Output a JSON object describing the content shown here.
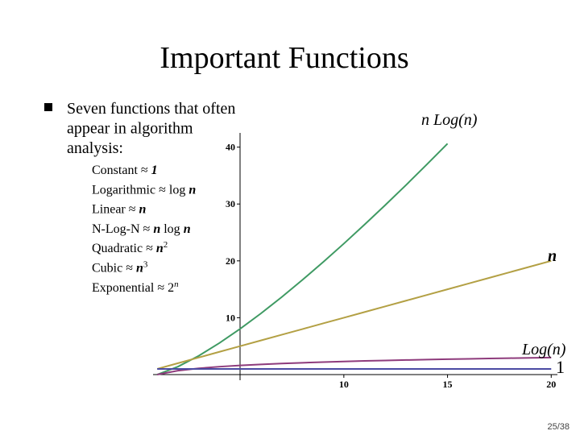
{
  "slide": {
    "title": "Important Functions",
    "bullet": [
      "Seven functions that often",
      "appear in algorithm",
      "analysis:"
    ],
    "approx": "≈",
    "items": [
      {
        "name": "Constant",
        "parts": [
          {
            "text": "1",
            "style": "var"
          }
        ]
      },
      {
        "name": "Logarithmic",
        "parts": [
          {
            "text": "log ",
            "style": "plain"
          },
          {
            "text": "n",
            "style": "var"
          }
        ]
      },
      {
        "name": "Linear",
        "parts": [
          {
            "text": "n",
            "style": "var"
          }
        ]
      },
      {
        "name": "N-Log-N",
        "parts": [
          {
            "text": "n",
            "style": "var"
          },
          {
            "text": " log ",
            "style": "plain"
          },
          {
            "text": "n",
            "style": "var"
          }
        ]
      },
      {
        "name": "Quadratic",
        "parts": [
          {
            "text": "n",
            "style": "var"
          },
          {
            "text": "2",
            "style": "sup"
          }
        ]
      },
      {
        "name": "Cubic",
        "parts": [
          {
            "text": "n",
            "style": "var"
          },
          {
            "text": "3",
            "style": "sup"
          }
        ]
      },
      {
        "name": "Exponential",
        "parts": [
          {
            "text": "2",
            "style": "plain"
          },
          {
            "text": "n",
            "style": "supvar"
          }
        ]
      }
    ],
    "page_number": "25/38"
  },
  "chart_data": {
    "type": "line",
    "x": [
      1,
      2,
      3,
      4,
      5,
      6,
      7,
      8,
      9,
      10,
      11,
      12,
      13,
      14,
      15,
      16,
      17,
      18,
      19,
      20
    ],
    "series": [
      {
        "name": "n Log(n)",
        "color": "#3f9a63",
        "values": [
          0,
          1.39,
          3.3,
          5.55,
          8.05,
          10.75,
          13.62,
          16.64,
          19.78,
          23.03,
          26.38,
          29.82,
          33.34,
          36.95,
          40.62,
          null,
          null,
          null,
          null,
          null
        ]
      },
      {
        "name": "n",
        "color": "#b3a044",
        "values": [
          1,
          2,
          3,
          4,
          5,
          6,
          7,
          8,
          9,
          10,
          11,
          12,
          13,
          14,
          15,
          16,
          17,
          18,
          19,
          20
        ]
      },
      {
        "name": "Log(n)",
        "color": "#8e3b7c",
        "values": [
          0,
          0.69,
          1.1,
          1.39,
          1.61,
          1.79,
          1.95,
          2.08,
          2.2,
          2.3,
          2.4,
          2.48,
          2.56,
          2.64,
          2.71,
          2.77,
          2.83,
          2.89,
          2.94,
          3.0
        ]
      },
      {
        "name": "1",
        "color": "#4b4ba3",
        "values": [
          1,
          1,
          1,
          1,
          1,
          1,
          1,
          1,
          1,
          1,
          1,
          1,
          1,
          1,
          1,
          1,
          1,
          1,
          1,
          1
        ]
      }
    ],
    "xlim": [
      0.8,
      20.3
    ],
    "ylim": [
      0,
      42.5
    ],
    "xticks": [
      10,
      15,
      20
    ],
    "yticks": [
      10,
      20,
      30,
      40
    ]
  }
}
